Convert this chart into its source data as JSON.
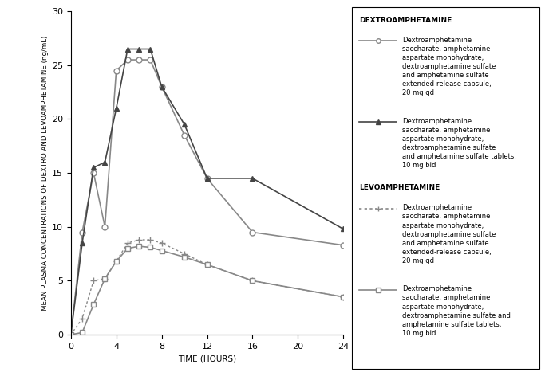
{
  "xlabel": "TIME (HOURS)",
  "ylabel": "MEAN PLASMA CONCENTRATIONS OF DEXTRO AND LEVOAMPHETAMINE (ng/mL)",
  "xlim": [
    0,
    24
  ],
  "ylim": [
    0,
    30
  ],
  "xticks": [
    0,
    4,
    8,
    12,
    16,
    20,
    24
  ],
  "yticks": [
    0,
    5,
    10,
    15,
    20,
    25,
    30
  ],
  "dextro_xr_x": [
    0,
    1,
    2,
    3,
    4,
    5,
    6,
    7,
    8,
    10,
    12,
    16,
    24
  ],
  "dextro_xr_y": [
    0,
    9.5,
    15.0,
    10.0,
    24.5,
    25.5,
    25.5,
    25.5,
    23.0,
    18.5,
    14.5,
    9.5,
    8.3
  ],
  "dextro_bid_x": [
    0,
    1,
    2,
    3,
    4,
    5,
    6,
    7,
    8,
    10,
    12,
    16,
    24
  ],
  "dextro_bid_y": [
    0,
    8.5,
    15.5,
    16.0,
    21.0,
    26.5,
    26.5,
    26.5,
    23.0,
    19.5,
    14.5,
    14.5,
    9.8
  ],
  "levo_xr_x": [
    0,
    1,
    2,
    3,
    4,
    5,
    6,
    7,
    8,
    10,
    12,
    16,
    24
  ],
  "levo_xr_y": [
    0,
    1.5,
    5.0,
    5.2,
    6.8,
    8.5,
    8.8,
    8.8,
    8.5,
    7.5,
    6.5,
    5.0,
    3.5
  ],
  "levo_bid_x": [
    0,
    1,
    2,
    3,
    4,
    5,
    6,
    7,
    8,
    10,
    12,
    16,
    24
  ],
  "levo_bid_y": [
    0,
    0.2,
    2.8,
    5.2,
    6.8,
    8.0,
    8.2,
    8.1,
    7.8,
    7.2,
    6.5,
    5.0,
    3.5
  ],
  "legend_title_dextro": "DEXTROAMPHETAMINE",
  "legend_title_levo": "LEVOAMPHETAMINE",
  "legend_label_dextro_xr": "Dextroamphetamine\nsaccharate, amphetamine\naspartate monohydrate,\ndextroamphetamine sulfate\nand amphetamine sulfate\nextended-release capsule,\n20 mg qd",
  "legend_label_dextro_bid": "Dextroamphetamine\nsaccharate, amphetamine\naspartate monohydrate,\ndextroamphetamine sulfate\nand amphetamine sulfate tablets,\n10 mg bid",
  "legend_label_levo_xr": "Dextroamphetamine\nsaccharate, amphetamine\naspartate monohydrate,\ndextroamphetamine sulfate\nand amphetamine sulfate\nextended-release capsule,\n20 mg gd",
  "legend_label_levo_bid": "Dextroamphetamine\nsaccharate, amphetamine\naspartate monohydrate,\ndextroamphetamine sulfate and\namphetamine sulfate tablets,\n10 mg bid",
  "line_color_gray": "#888888",
  "line_color_dark": "#444444",
  "line_color_medium": "#666666"
}
